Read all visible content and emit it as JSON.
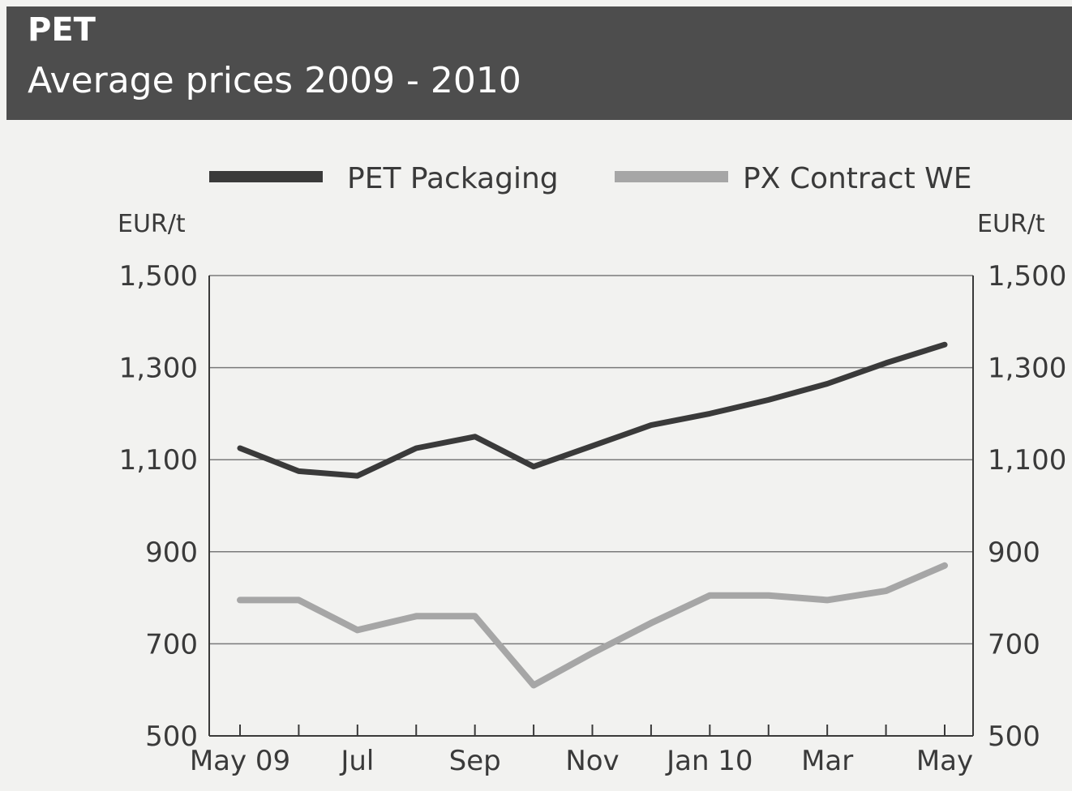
{
  "header": {
    "title": "PET",
    "subtitle": "Average prices 2009 - 2010"
  },
  "chart_data": {
    "type": "line",
    "title": "PET",
    "subtitle": "Average prices 2009 - 2010",
    "y_unit_left": "EUR/t",
    "y_unit_right": "EUR/t",
    "ylim": [
      500,
      1500
    ],
    "yticks": [
      500,
      700,
      900,
      1100,
      1300,
      1500
    ],
    "ytick_labels": [
      "500",
      "700",
      "900",
      "1,100",
      "1,300",
      "1,500"
    ],
    "x_tick_labels": [
      {
        "index": 0,
        "label": "May 09"
      },
      {
        "index": 2,
        "label": "Jul"
      },
      {
        "index": 4,
        "label": "Sep"
      },
      {
        "index": 6,
        "label": "Nov"
      },
      {
        "index": 8,
        "label": "Jan 10"
      },
      {
        "index": 10,
        "label": "Mar"
      },
      {
        "index": 12,
        "label": "May"
      }
    ],
    "x": [
      "May 09",
      "Jun 09",
      "Jul 09",
      "Aug 09",
      "Sep 09",
      "Oct 09",
      "Nov 09",
      "Dec 09",
      "Jan 10",
      "Feb 10",
      "Mar 10",
      "Apr 10",
      "May 10"
    ],
    "series": [
      {
        "name": "PET Packaging",
        "color": "#3a3a3a",
        "values": [
          1125,
          1075,
          1065,
          1125,
          1150,
          1085,
          1130,
          1175,
          1200,
          1230,
          1265,
          1310,
          1350
        ]
      },
      {
        "name": "PX Contract WE",
        "color": "#a6a6a6",
        "values": [
          795,
          795,
          730,
          760,
          760,
          610,
          680,
          745,
          805,
          805,
          795,
          815,
          870
        ]
      }
    ],
    "grid": true,
    "legend_position": "top"
  }
}
